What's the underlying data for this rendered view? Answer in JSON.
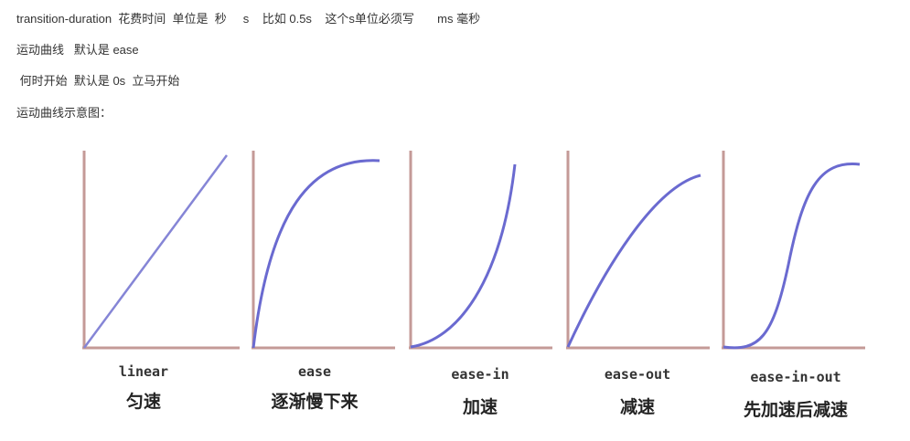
{
  "lines": {
    "l1": "transition-duration  花费时间  单位是  秒     s    比如 0.5s    这个s单位必须写       ms 毫秒",
    "l2": "运动曲线   默认是 ease",
    "l3": " 何时开始  默认是 0s  立马开始",
    "l4": "运动曲线示意图："
  },
  "figure": {
    "axis_color": "#c49a97",
    "curve_color": "#6a6ad0",
    "panels": [
      {
        "id": "linear",
        "code": "linear",
        "label": "匀速"
      },
      {
        "id": "ease",
        "code": "ease",
        "label": "逐渐慢下来"
      },
      {
        "id": "ease-in",
        "code": "ease-in",
        "label": "加速"
      },
      {
        "id": "ease-out",
        "code": "ease-out",
        "label": "减速"
      },
      {
        "id": "ease-in-out",
        "code": "ease-in-out",
        "label": "先加速后减速"
      }
    ]
  }
}
